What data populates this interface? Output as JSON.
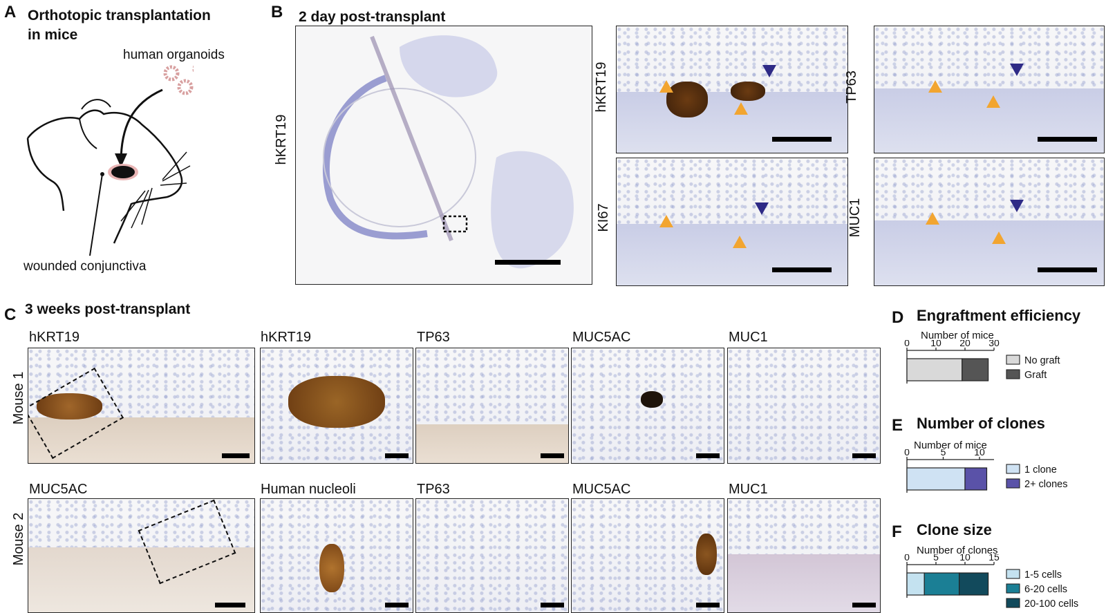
{
  "panel_a": {
    "label": "A",
    "title_line1": "Orthotopic transplantation",
    "title_line2": "in mice",
    "organoid_label": "human organoids",
    "wound_label": "wounded conjunctiva"
  },
  "panel_b": {
    "label": "B",
    "title": "2 day post-transplant",
    "overview_label": "hKRT19",
    "stain_labels": [
      "hKRT19",
      "TP63",
      "KI67",
      "MUC1"
    ]
  },
  "panel_c": {
    "label": "C",
    "title": "3 weeks post-transplant",
    "row1_label": "Mouse 1",
    "row2_label": "Mouse 2",
    "row1_stains": [
      "hKRT19",
      "hKRT19",
      "TP63",
      "MUC5AC",
      "MUC1"
    ],
    "row2_stains": [
      "MUC5AC",
      "Human nucleoli",
      "TP63",
      "MUC5AC",
      "MUC1"
    ]
  },
  "panel_d": {
    "label": "D"
  },
  "panel_e": {
    "label": "E"
  },
  "panel_f": {
    "label": "F"
  },
  "chart_data": [
    {
      "type": "bar",
      "orientation": "horizontal-stacked",
      "title": "Engraftment efficiency",
      "xlabel": "Number of mice",
      "xlim": [
        0,
        30
      ],
      "ticks": [
        "0",
        "10",
        "20",
        "30"
      ],
      "series": [
        {
          "name": "No graft",
          "values": [
            19
          ],
          "color": "#d9d9d9"
        },
        {
          "name": "Graft",
          "values": [
            9
          ],
          "color": "#555555"
        }
      ],
      "legend": "right"
    },
    {
      "type": "bar",
      "orientation": "horizontal-stacked",
      "title": "Number of clones",
      "xlabel": "Number of mice",
      "xlim": [
        0,
        12
      ],
      "ticks": [
        "0",
        "5",
        "10"
      ],
      "series": [
        {
          "name": "1 clone",
          "values": [
            8
          ],
          "color": "#cfe2f3"
        },
        {
          "name": "2+ clones",
          "values": [
            3
          ],
          "color": "#5a52a8"
        }
      ],
      "legend": "right"
    },
    {
      "type": "bar",
      "orientation": "horizontal-stacked",
      "title": "Clone size",
      "xlabel": "Number of clones",
      "xlim": [
        0,
        15
      ],
      "ticks": [
        "0",
        "5",
        "10",
        "15"
      ],
      "series": [
        {
          "name": "1-5 cells",
          "values": [
            3
          ],
          "color": "#c4e2f0"
        },
        {
          "name": "6-20 cells",
          "values": [
            6
          ],
          "color": "#1b7f95"
        },
        {
          "name": "20-100 cells",
          "values": [
            5
          ],
          "color": "#124a5c"
        }
      ],
      "legend": "right"
    }
  ]
}
